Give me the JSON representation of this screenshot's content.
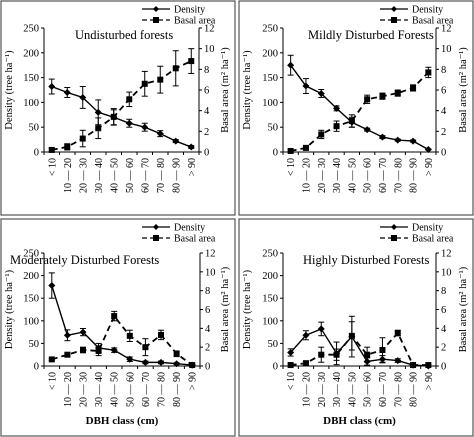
{
  "figure": {
    "panel_border": "#555555",
    "series_color": "#000000"
  },
  "chart_data": [
    {
      "type": "line",
      "title": "Undisturbed forests",
      "categories": [
        "< 10",
        "10 — 20",
        "20 — 30",
        "30 — 40",
        "40 — 50",
        "50 — 60",
        "60 — 70",
        "70 — 80",
        "80 — 90",
        "> 90"
      ],
      "ylabel_left": "Density (tree ha⁻¹)",
      "ylabel_right": "Basal area (m² ha⁻¹)",
      "xlabel": "",
      "ylim_left": [
        0,
        250
      ],
      "ylim_right": [
        0,
        12
      ],
      "yticks_left": [
        "0",
        "50",
        "100",
        "150",
        "200",
        "250"
      ],
      "yticks_right": [
        "0",
        "2",
        "4",
        "6",
        "8",
        "10",
        "12"
      ],
      "legend": {
        "position": "top-right",
        "entries": [
          "Density",
          "Basal area"
        ]
      },
      "series": [
        {
          "name": "Density",
          "axis": "left",
          "style": "solid-diamond",
          "values": [
            132,
            120,
            110,
            80,
            70,
            58,
            50,
            37,
            22,
            10
          ],
          "errors": [
            15,
            10,
            22,
            25,
            15,
            8,
            8,
            6,
            3,
            3
          ]
        },
        {
          "name": "Basal area",
          "axis": "right",
          "style": "dashed-square",
          "values": [
            0.2,
            0.5,
            1.3,
            2.3,
            3.4,
            5.1,
            6.6,
            7.0,
            8.1,
            8.8
          ],
          "errors": [
            0.2,
            0.3,
            0.8,
            1.0,
            0.8,
            0.7,
            1.2,
            1.3,
            1.7,
            1.2
          ]
        }
      ]
    },
    {
      "type": "line",
      "title": "Mildly Disturbed Forests",
      "categories": [
        "< 10",
        "10 — 20",
        "20 — 30",
        "30 — 40",
        "40 — 50",
        "50 — 60",
        "60 — 70",
        "70 — 80",
        "80 — 90",
        "> 90"
      ],
      "ylabel_left": "Density (tree ha⁻¹)",
      "ylabel_right": "Basal area (m² ha⁻¹)",
      "xlabel": "",
      "ylim_left": [
        0,
        250
      ],
      "ylim_right": [
        0,
        12
      ],
      "yticks_left": [
        "0",
        "50",
        "100",
        "150",
        "200",
        "250"
      ],
      "yticks_right": [
        "0",
        "2",
        "4",
        "6",
        "8",
        "10",
        "12"
      ],
      "legend": {
        "position": "top-right",
        "entries": [
          "Density",
          "Basal area"
        ]
      },
      "series": [
        {
          "name": "Density",
          "axis": "left",
          "style": "solid-diamond",
          "values": [
            175,
            133,
            118,
            88,
            60,
            45,
            30,
            24,
            22,
            5
          ],
          "errors": [
            20,
            15,
            8,
            5,
            10,
            3,
            3,
            2,
            2,
            1
          ]
        },
        {
          "name": "Basal area",
          "axis": "right",
          "style": "dashed-square",
          "values": [
            0.1,
            0.4,
            1.7,
            2.5,
            3.0,
            5.1,
            5.4,
            5.7,
            6.2,
            7.7
          ],
          "errors": [
            0.1,
            0.2,
            0.4,
            0.5,
            0.6,
            0.4,
            0.3,
            0.3,
            0.3,
            0.5
          ]
        }
      ]
    },
    {
      "type": "line",
      "title": "Moderately Disturbed Forests",
      "categories": [
        "< 10",
        "10 — 20",
        "20 — 30",
        "30 — 40",
        "40 — 50",
        "50 — 60",
        "60 — 70",
        "70 — 80",
        "80 — 90",
        "> 90"
      ],
      "ylabel_left": "Density (tree ha⁻¹)",
      "ylabel_right": "Basal area (m² ha⁻¹)",
      "xlabel": "DBH class (cm)",
      "ylim_left": [
        0,
        250
      ],
      "ylim_right": [
        0,
        12
      ],
      "yticks_left": [
        "0",
        "50",
        "100",
        "150",
        "200",
        "250"
      ],
      "yticks_right": [
        "0",
        "2",
        "4",
        "6",
        "8",
        "10",
        "12"
      ],
      "legend": {
        "position": "top-right",
        "entries": [
          "Density",
          "Basal area"
        ]
      },
      "series": [
        {
          "name": "Density",
          "axis": "left",
          "style": "solid-diamond",
          "values": [
            178,
            68,
            75,
            40,
            35,
            15,
            8,
            8,
            5,
            2
          ],
          "errors": [
            28,
            12,
            8,
            10,
            5,
            5,
            3,
            3,
            2,
            1
          ]
        },
        {
          "name": "Basal area",
          "axis": "right",
          "style": "dashed-square",
          "values": [
            0.7,
            1.2,
            1.7,
            1.6,
            5.3,
            3.2,
            2.0,
            3.3,
            1.3,
            0.1
          ],
          "errors": [
            0.1,
            0.2,
            0.3,
            0.5,
            0.5,
            0.6,
            0.9,
            0.5,
            0.3,
            0.1
          ]
        }
      ]
    },
    {
      "type": "line",
      "title": "Highly Disturbed Forests",
      "categories": [
        "< 10",
        "10 — 20",
        "20 — 30",
        "30 — 40",
        "40 — 50",
        "50 — 60",
        "60 — 70",
        "70 — 80",
        "80 — 90",
        "> 90"
      ],
      "ylabel_left": "Density (tree ha⁻¹)",
      "ylabel_right": "Basal area (m² ha⁻¹)",
      "xlabel": "DBH class (cm)",
      "ylim_left": [
        0,
        250
      ],
      "ylim_right": [
        0,
        12
      ],
      "yticks_left": [
        "0",
        "50",
        "100",
        "150",
        "200",
        "250"
      ],
      "yticks_right": [
        "0",
        "2",
        "4",
        "6",
        "8",
        "10",
        "12"
      ],
      "legend": {
        "position": "top-right",
        "entries": [
          "Density",
          "Basal area"
        ]
      },
      "series": [
        {
          "name": "Density",
          "axis": "left",
          "style": "solid-diamond",
          "values": [
            30,
            68,
            82,
            28,
            65,
            10,
            15,
            12,
            2,
            0
          ],
          "errors": [
            8,
            10,
            15,
            25,
            45,
            8,
            8,
            4,
            1,
            0.5
          ]
        },
        {
          "name": "Basal area",
          "axis": "right",
          "style": "dashed-square",
          "values": [
            0.1,
            0.3,
            1.2,
            1.2,
            3.2,
            1.2,
            1.7,
            3.5,
            0.1,
            0.1
          ],
          "errors": [
            0.1,
            0.2,
            0.8,
            0.6,
            1.5,
            0.8,
            1.3,
            0.3,
            0.1,
            0.1
          ]
        }
      ]
    }
  ]
}
